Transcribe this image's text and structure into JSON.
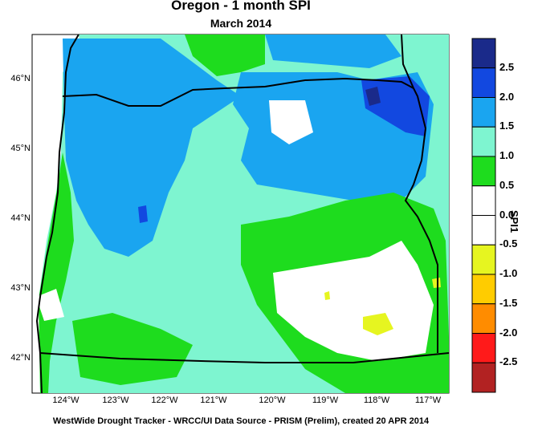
{
  "header": {
    "title": "Oregon - 1 month SPI",
    "subtitle": "March 2014"
  },
  "axes": {
    "latitude_labels": [
      "46°N",
      "45°N",
      "44°N",
      "43°N",
      "42°N"
    ],
    "longitude_labels": [
      "124°W",
      "123°W",
      "122°W",
      "121°W",
      "120°W",
      "119°W",
      "118°W",
      "117°W"
    ]
  },
  "footer": {
    "credit": "WestWide Drought Tracker - WRCC/UI  Data Source - PRISM (Prelim), created 20 APR 2014"
  },
  "legend": {
    "title": "SPI1",
    "levels": [
      {
        "label": "2.5",
        "color": "#1a2a8a"
      },
      {
        "label": "2.0",
        "color": "#1248e0"
      },
      {
        "label": "1.5",
        "color": "#1aa5f0"
      },
      {
        "label": "1.0",
        "color": "#7ef5d0"
      },
      {
        "label": "0.5",
        "color": "#1edc1e"
      },
      {
        "label": "0.0",
        "color": "#ffffff"
      },
      {
        "label": "-0.5",
        "color": "#ffffff"
      },
      {
        "label": "-1.0",
        "color": "#e6f520"
      },
      {
        "label": "-1.5",
        "color": "#ffcc00"
      },
      {
        "label": "-2.0",
        "color": "#ff8c00"
      },
      {
        "label": "-2.5",
        "color": "#ff1a1a"
      },
      {
        "label": "",
        "color": "#b22222"
      }
    ]
  },
  "colors": {
    "ocean": "#ffffff",
    "border": "#000000"
  }
}
